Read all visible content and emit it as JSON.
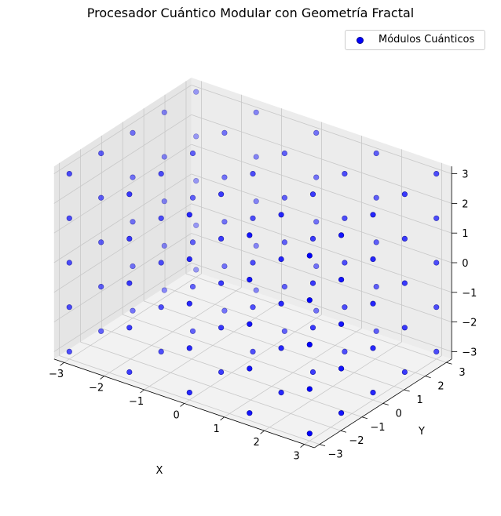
{
  "chart_data": {
    "type": "scatter",
    "projection": "3d",
    "title": "Procesador Cuántico Modular con Geometría Fractal",
    "xlabel": "X",
    "ylabel": "Y",
    "zlabel": "",
    "xlim": [
      -3,
      3
    ],
    "ylim": [
      -3,
      3
    ],
    "zlim": [
      -3,
      3
    ],
    "x_ticks": [
      "−3",
      "−2",
      "−1",
      "0",
      "1",
      "2",
      "3"
    ],
    "y_ticks": [
      "−3",
      "−2",
      "−1",
      "0",
      "1",
      "2",
      "3"
    ],
    "z_ticks": [
      "−3",
      "−2",
      "−1",
      "0",
      "1",
      "2",
      "3"
    ],
    "grid": true,
    "legend_position": "top-right",
    "series": [
      {
        "name": "Módulos Cuánticos",
        "color": "#0000ff",
        "points_description": "regular lattice at x, y, z in {-3, -1.5, 0, 1.5, 3}",
        "x_values": [
          -3,
          -1.5,
          0,
          1.5,
          3
        ],
        "y_values": [
          -3,
          -1.5,
          0,
          1.5,
          3
        ],
        "z_values": [
          -3,
          -1.5,
          0,
          1.5,
          3
        ]
      }
    ]
  }
}
